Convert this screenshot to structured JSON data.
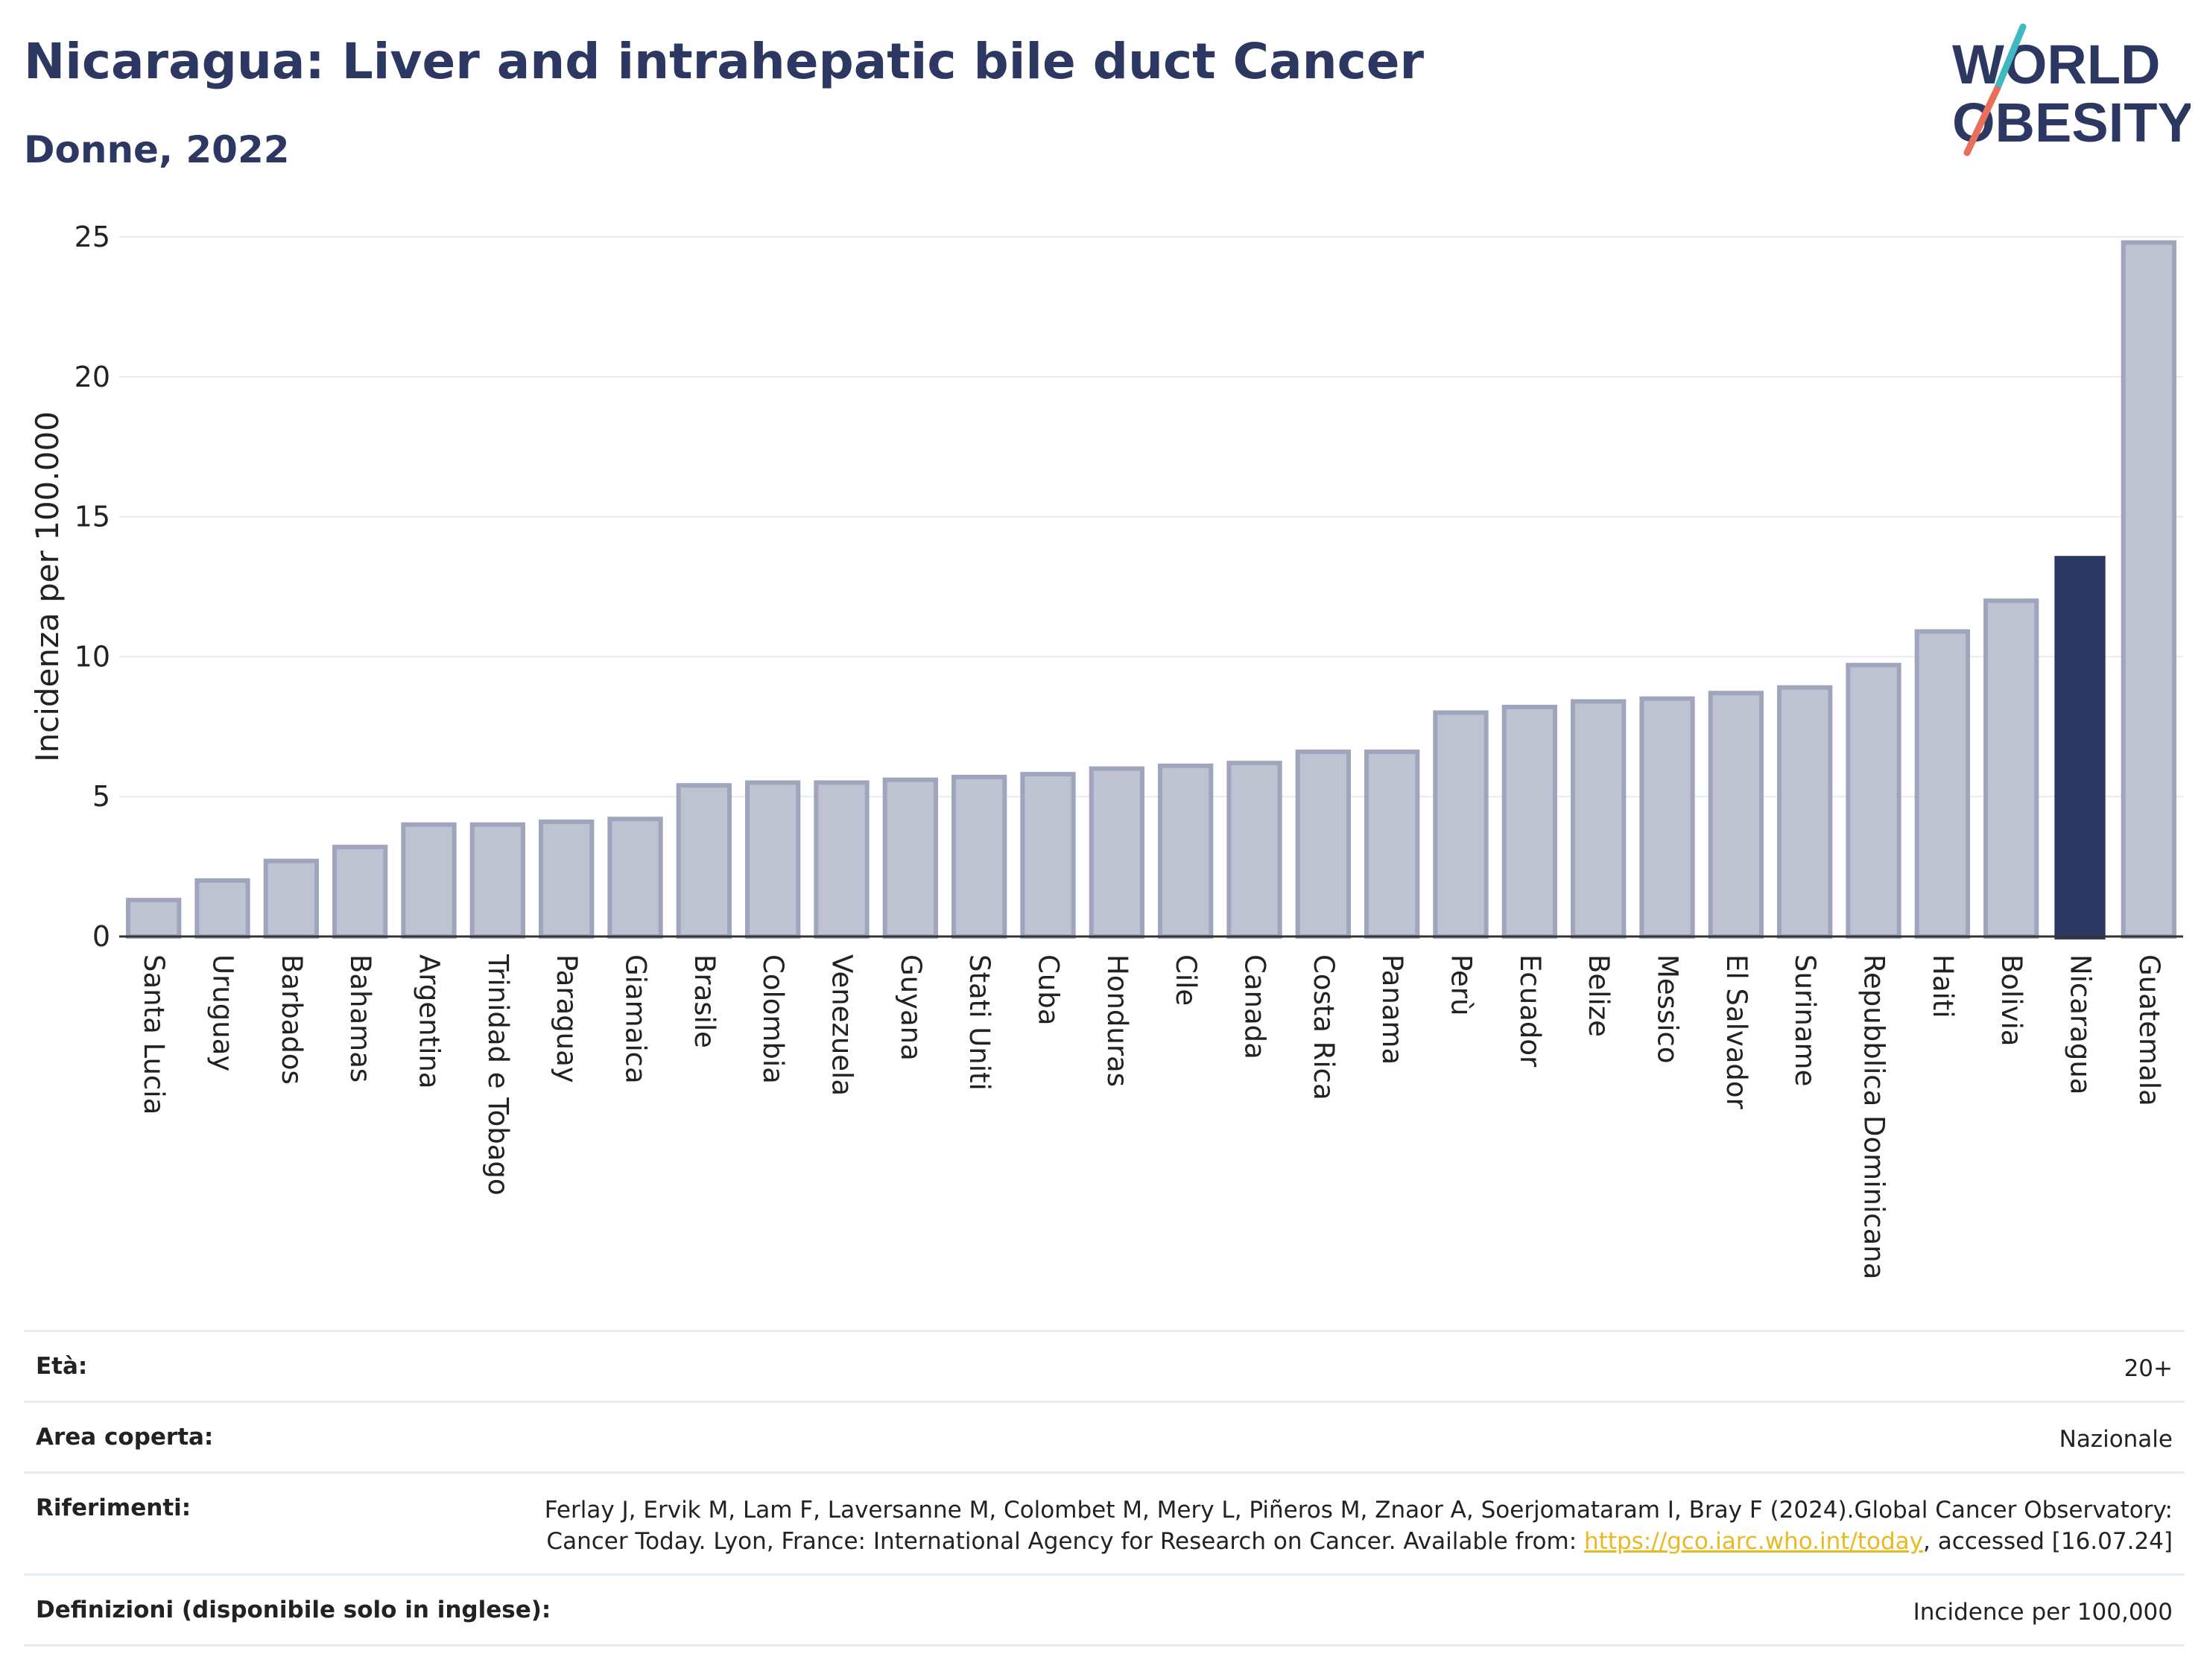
{
  "header": {
    "title": "Nicaragua: Liver and intrahepatic bile duct Cancer",
    "subtitle": "Donne, 2022"
  },
  "logo": {
    "line1": "WORLD",
    "line2": "OBESITY",
    "icon": "world-obesity-logo"
  },
  "chart_data": {
    "type": "bar",
    "ylabel": "Incidenza per 100.000",
    "ylim": [
      0,
      25
    ],
    "yticks": [
      0,
      5,
      10,
      15,
      20,
      25
    ],
    "grid": true,
    "categories": [
      "Santa Lucia",
      "Uruguay",
      "Barbados",
      "Bahamas",
      "Argentina",
      "Trinidad e Tobago",
      "Paraguay",
      "Giamaica",
      "Brasile",
      "Colombia",
      "Venezuela",
      "Guyana",
      "Stati Uniti",
      "Cuba",
      "Honduras",
      "Cile",
      "Canada",
      "Costa Rica",
      "Panama",
      "Perù",
      "Ecuador",
      "Belize",
      "Messico",
      "El Salvador",
      "Suriname",
      "Repubblica Dominicana",
      "Haiti",
      "Bolivia",
      "Nicaragua",
      "Guatemala"
    ],
    "values": [
      1.3,
      2.0,
      2.7,
      3.2,
      4.0,
      4.0,
      4.1,
      4.2,
      5.4,
      5.5,
      5.5,
      5.6,
      5.7,
      5.8,
      6.0,
      6.1,
      6.2,
      6.6,
      6.6,
      8.0,
      8.2,
      8.4,
      8.5,
      8.7,
      8.9,
      9.7,
      10.9,
      12.0,
      13.6,
      24.8
    ],
    "highlight": "Nicaragua",
    "colors": {
      "highlight": "#2d3862",
      "bar_fill": "#bfc3d1",
      "bar_border": "#9fa5bd"
    }
  },
  "meta": {
    "age_label": "Età:",
    "age_value": "20+",
    "area_label": "Area coperta:",
    "area_value": "Nazionale",
    "ref_label": "Riferimenti:",
    "ref_text_1": "Ferlay J, Ervik M, Lam F, Laversanne M, Colombet M, Mery L, Piñeros M, Znaor A, Soerjomataram I, Bray F (2024).Global Cancer Observatory: Cancer Today. Lyon, France: International Agency for Research on Cancer. Available from: ",
    "ref_link": "https://gco.iarc.who.int/today",
    "ref_text_2": ", accessed [16.07.24]",
    "def_label": "Definizioni (disponibile solo in inglese):",
    "def_value": "Incidence per 100,000"
  }
}
